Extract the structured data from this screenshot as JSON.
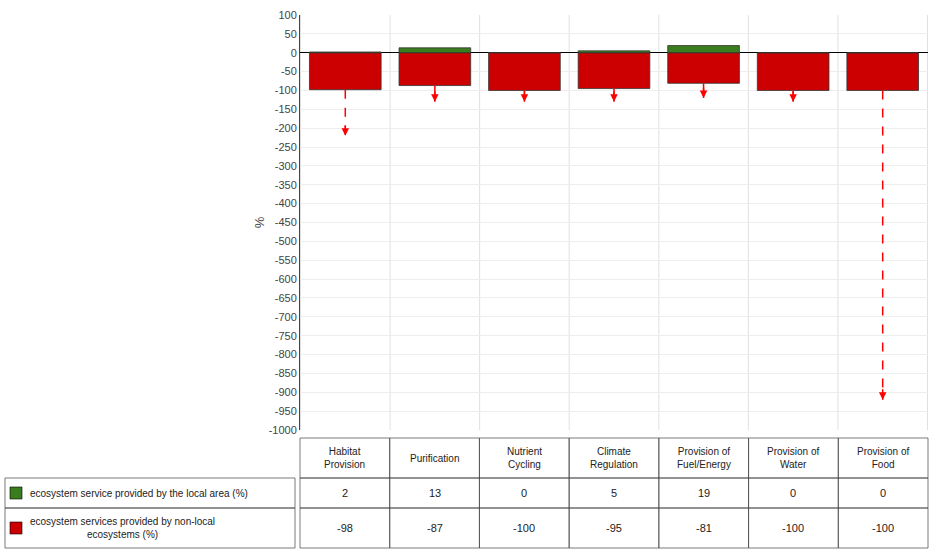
{
  "chart_data": {
    "type": "bar",
    "categories": [
      "Habitat\nProvision",
      "Purification",
      "Nutrient\nCycling",
      "Climate\nRegulation",
      "Provision of\nFuel/Energy",
      "Provision of\nWater",
      "Provision of\nFood"
    ],
    "series": [
      {
        "name": "ecosystem service provided by the local area (%)",
        "color": "#3a7d1e",
        "values": [
          2,
          13,
          0,
          5,
          19,
          0,
          0
        ]
      },
      {
        "name": "ecosystem services provided by non-local\necosystems (%)",
        "color": "#cc0000",
        "values": [
          -98,
          -87,
          -100,
          -95,
          -81,
          -100,
          -100
        ]
      }
    ],
    "arrows": {
      "values": [
        -220,
        -130,
        -130,
        -130,
        -120,
        -130,
        -920
      ],
      "line_styles": [
        "dashed",
        "solid",
        "solid",
        "solid",
        "solid",
        "solid",
        "dashed"
      ],
      "color": "red"
    },
    "ylabel": "%",
    "ylim": [
      -1000,
      100
    ],
    "yticks": [
      100,
      50,
      0,
      -50,
      -100,
      -150,
      -200,
      -250,
      -300,
      -350,
      -400,
      -450,
      -500,
      -550,
      -600,
      -650,
      -700,
      -750,
      -800,
      -850,
      -900,
      -950,
      -1000
    ],
    "grid": true,
    "tick_labels": "y",
    "data_labels": true
  }
}
